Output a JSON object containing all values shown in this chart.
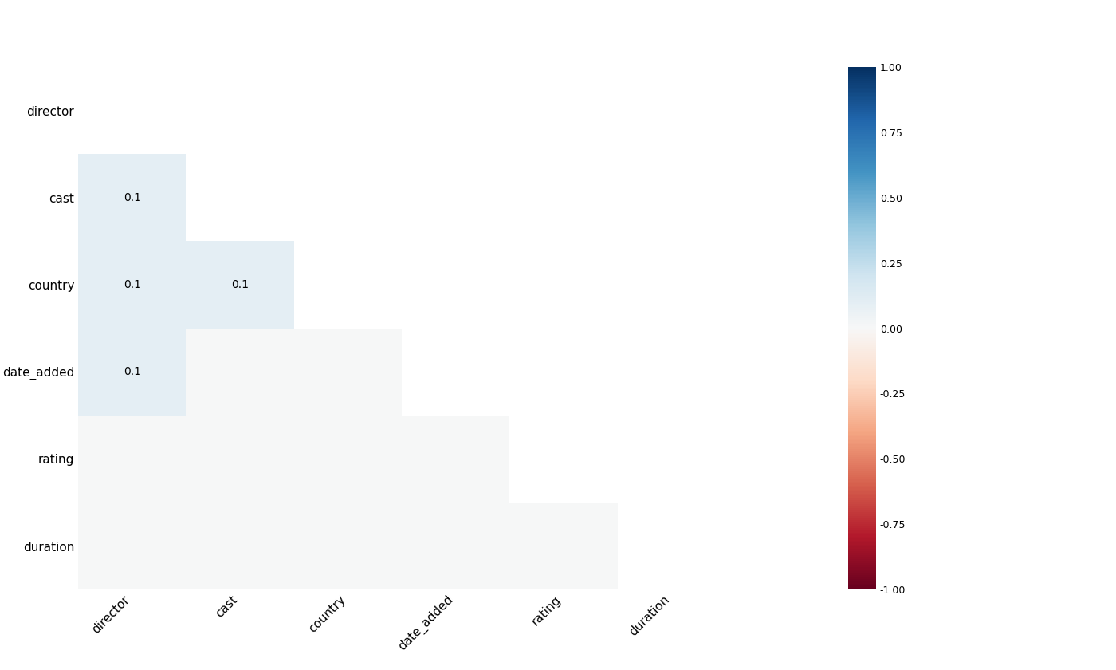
{
  "labels": [
    "director",
    "cast",
    "country",
    "date_added",
    "rating",
    "duration"
  ],
  "matrix": [
    [
      null,
      null,
      null,
      null,
      null,
      null
    ],
    [
      0.1,
      null,
      null,
      null,
      null,
      null
    ],
    [
      0.1,
      0.1,
      null,
      null,
      null,
      null
    ],
    [
      0.1,
      null,
      null,
      null,
      null,
      null
    ],
    [
      null,
      null,
      null,
      null,
      null,
      null
    ],
    [
      null,
      null,
      null,
      null,
      null,
      null
    ]
  ],
  "annotate_values": [
    [
      null,
      null,
      null,
      null,
      null,
      null
    ],
    [
      "0.1",
      null,
      null,
      null,
      null,
      null
    ],
    [
      "0.1",
      "0.1",
      null,
      null,
      null,
      null
    ],
    [
      "0.1",
      null,
      null,
      null,
      null,
      null
    ],
    [
      null,
      null,
      null,
      null,
      null,
      null
    ],
    [
      null,
      null,
      null,
      null,
      null,
      null
    ]
  ],
  "filled": [
    [
      false,
      false,
      false,
      false,
      false,
      false
    ],
    [
      true,
      false,
      false,
      false,
      false,
      false
    ],
    [
      true,
      true,
      false,
      false,
      false,
      false
    ],
    [
      true,
      true,
      true,
      false,
      false,
      false
    ],
    [
      true,
      true,
      true,
      true,
      false,
      false
    ],
    [
      true,
      true,
      true,
      true,
      true,
      false
    ]
  ],
  "cmap": "RdBu",
  "vmin": -1.0,
  "vmax": 1.0,
  "colorbar_ticks": [
    1.0,
    0.75,
    0.5,
    0.25,
    0.0,
    -0.25,
    -0.5,
    -0.75,
    -1.0
  ],
  "colorbar_ticklabels": [
    "1.00",
    "0.75",
    "0.50",
    "0.25",
    "0.00",
    "-0.25",
    "-0.50",
    "-0.75",
    "-1.00"
  ],
  "figure_width": 14.0,
  "figure_height": 8.4,
  "dpi": 100,
  "background_color": "#ffffff",
  "annot_fontsize": 10,
  "tick_fontsize": 11
}
